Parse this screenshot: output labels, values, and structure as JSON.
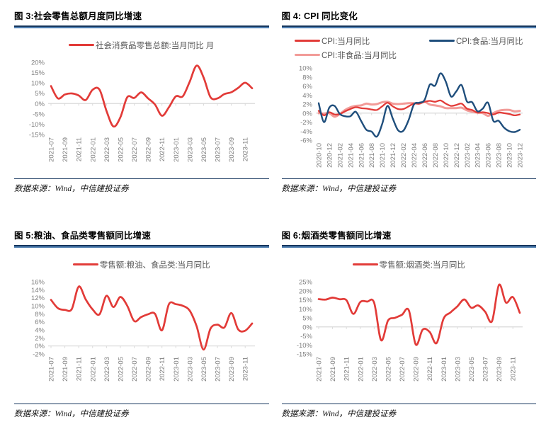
{
  "source_note": "数据来源：Wind，中信建投证券",
  "styles": {
    "accent_red": "#E23B38",
    "navy_line": "#1F4E7C",
    "pink_line": "#F29B98",
    "rule_dark": "#17375E",
    "rule_light": "#4E7EB0",
    "axis_label": "#7F7F7F",
    "legend_text": "#595959",
    "zero_line": "#D9D9D9"
  },
  "chart_data": [
    {
      "type": "line",
      "title": "图 3:社会零售总额月度同比增速",
      "x": [
        "2021-07",
        "2021-08",
        "2021-09",
        "2021-10",
        "2021-11",
        "2021-12",
        "2022-01",
        "2022-02",
        "2022-03",
        "2022-04",
        "2022-05",
        "2022-06",
        "2022-07",
        "2022-08",
        "2022-09",
        "2022-10",
        "2022-11",
        "2022-12",
        "2023-01",
        "2023-02",
        "2023-03",
        "2023-04",
        "2023-05",
        "2023-06",
        "2023-07",
        "2023-08",
        "2023-09",
        "2023-10",
        "2023-11",
        "2023-12"
      ],
      "x_label_every": 2,
      "ylim": [
        -15,
        20
      ],
      "yticks": [
        20,
        15,
        10,
        5,
        0,
        -5,
        -10,
        -15
      ],
      "ylabel_suffix": "%",
      "grid": "zero-axis-only",
      "legend_position": "top",
      "legend_order": [
        0
      ],
      "series": [
        {
          "name": "社会消费品零售总额:当月同比 月",
          "color": "#E23B38",
          "width": 2.7,
          "values": [
            8.5,
            2.5,
            4.4,
            4.9,
            3.9,
            1.7,
            6.7,
            6.7,
            -3.5,
            -11.1,
            -6.7,
            3.1,
            2.7,
            5.4,
            2.5,
            -0.5,
            -5.9,
            -1.8,
            3.5,
            3.5,
            10.6,
            18.4,
            12.7,
            3.1,
            2.5,
            4.6,
            5.5,
            7.6,
            10.1,
            7.4
          ]
        }
      ]
    },
    {
      "type": "line",
      "title": "图 4: CPI 同比变化",
      "x": [
        "2020-10",
        "2020-11",
        "2020-12",
        "2021-01",
        "2021-02",
        "2021-03",
        "2021-04",
        "2021-05",
        "2021-06",
        "2021-07",
        "2021-08",
        "2021-09",
        "2021-10",
        "2021-11",
        "2021-12",
        "2022-01",
        "2022-02",
        "2022-03",
        "2022-04",
        "2022-05",
        "2022-06",
        "2022-07",
        "2022-08",
        "2022-09",
        "2022-10",
        "2022-11",
        "2022-12",
        "2023-01",
        "2023-02",
        "2023-03",
        "2023-04",
        "2023-05",
        "2023-06",
        "2023-07",
        "2023-08",
        "2023-09",
        "2023-10",
        "2023-11",
        "2023-12"
      ],
      "x_label_every": 2,
      "ylim": [
        -6,
        10
      ],
      "yticks": [
        10,
        8,
        6,
        4,
        2,
        0,
        -2,
        -4,
        -6
      ],
      "ylabel_suffix": "%",
      "grid": "zero-axis-only",
      "legend_position": "top",
      "legend_order": [
        1,
        2,
        0
      ],
      "series": [
        {
          "name": "CPI:非食品:当月同比",
          "color": "#F29B98",
          "width": 3.0,
          "values": [
            0.0,
            -0.1,
            0.0,
            -0.8,
            -0.2,
            0.7,
            1.3,
            1.6,
            1.7,
            2.1,
            1.9,
            2.0,
            2.4,
            2.5,
            2.1,
            2.0,
            2.1,
            2.2,
            2.2,
            2.1,
            2.5,
            1.9,
            1.7,
            1.5,
            1.1,
            1.1,
            1.1,
            1.2,
            0.6,
            0.3,
            0.1,
            0.0,
            -0.6,
            0.0,
            0.5,
            0.7,
            0.7,
            0.4,
            0.5
          ]
        },
        {
          "name": "CPI:当月同比",
          "color": "#E23B38",
          "width": 2.3,
          "values": [
            0.5,
            -0.5,
            0.2,
            -0.3,
            -0.2,
            0.4,
            0.9,
            1.3,
            1.1,
            1.0,
            0.8,
            0.7,
            1.5,
            2.3,
            1.5,
            0.9,
            0.9,
            1.5,
            2.1,
            2.1,
            2.5,
            2.7,
            2.5,
            2.8,
            2.1,
            1.6,
            1.8,
            2.1,
            1.0,
            0.7,
            0.1,
            0.2,
            0.0,
            -0.3,
            0.1,
            0.0,
            -0.2,
            -0.5,
            -0.3
          ]
        },
        {
          "name": "CPI:食品:当月同比",
          "color": "#1F4E7C",
          "width": 2.4,
          "values": [
            2.2,
            -2.0,
            1.2,
            1.6,
            -0.2,
            -0.7,
            -0.7,
            0.3,
            -1.7,
            -3.7,
            -4.1,
            -5.2,
            -2.4,
            1.6,
            -1.2,
            -3.8,
            -3.9,
            -1.5,
            1.9,
            2.3,
            2.9,
            6.3,
            6.1,
            8.8,
            7.0,
            3.7,
            4.8,
            6.2,
            2.6,
            2.4,
            0.4,
            1.0,
            2.3,
            -1.7,
            -1.7,
            -3.2,
            -4.0,
            -4.2,
            -3.7
          ]
        }
      ]
    },
    {
      "type": "line",
      "title": "图 5:粮油、食品类零售额同比增速",
      "x": [
        "2021-07",
        "2021-08",
        "2021-09",
        "2021-10",
        "2021-11",
        "2021-12",
        "2022-01",
        "2022-02",
        "2022-03",
        "2022-04",
        "2022-05",
        "2022-06",
        "2022-07",
        "2022-08",
        "2022-09",
        "2022-10",
        "2022-11",
        "2022-12",
        "2023-01",
        "2023-02",
        "2023-03",
        "2023-04",
        "2023-05",
        "2023-06",
        "2023-07",
        "2023-08",
        "2023-09",
        "2023-10",
        "2023-11",
        "2023-12"
      ],
      "x_label_every": 2,
      "ylim": [
        -2,
        16
      ],
      "yticks": [
        16,
        14,
        12,
        10,
        8,
        6,
        4,
        2,
        0,
        -2
      ],
      "ylabel_suffix": "%",
      "grid": "zero-axis-only",
      "legend_position": "top",
      "legend_order": [
        0
      ],
      "series": [
        {
          "name": "零售额:粮油、食品类:当月同比",
          "color": "#E23B38",
          "width": 2.7,
          "values": [
            11.5,
            9.4,
            9.0,
            9.2,
            14.8,
            11.6,
            9.1,
            7.9,
            12.5,
            9.7,
            12.2,
            10.0,
            6.2,
            7.2,
            7.9,
            8.0,
            3.9,
            10.4,
            10.4,
            10.0,
            8.8,
            4.9,
            -0.9,
            4.3,
            5.3,
            4.6,
            8.2,
            4.1,
            3.8,
            5.6
          ]
        }
      ]
    },
    {
      "type": "line",
      "title": "图 6:烟酒类零售额同比增速",
      "x": [
        "2021-07",
        "2021-08",
        "2021-09",
        "2021-10",
        "2021-11",
        "2021-12",
        "2022-01",
        "2022-02",
        "2022-03",
        "2022-04",
        "2022-05",
        "2022-06",
        "2022-07",
        "2022-08",
        "2022-09",
        "2022-10",
        "2022-11",
        "2022-12",
        "2023-01",
        "2023-02",
        "2023-03",
        "2023-04",
        "2023-05",
        "2023-06",
        "2023-07",
        "2023-08",
        "2023-09",
        "2023-10",
        "2023-11",
        "2023-12"
      ],
      "x_label_every": 2,
      "ylim": [
        -15,
        25
      ],
      "yticks": [
        25,
        20,
        15,
        10,
        5,
        0,
        -5,
        -10,
        -15
      ],
      "ylabel_suffix": "%",
      "grid": "zero-axis-only",
      "legend_position": "top",
      "legend_order": [
        0
      ],
      "series": [
        {
          "name": "零售额:烟酒类:当月同比",
          "color": "#E23B38",
          "width": 2.7,
          "values": [
            15.4,
            15.1,
            16.2,
            15.3,
            14.8,
            7.2,
            13.8,
            14.0,
            13.4,
            -7.4,
            3.5,
            5.0,
            6.7,
            9.2,
            -9.8,
            -1.5,
            -2.8,
            -9.0,
            4.5,
            8.0,
            11.4,
            15.2,
            10.6,
            11.9,
            8.4,
            3.2,
            23.3,
            13.5,
            16.5,
            7.8
          ]
        }
      ]
    }
  ]
}
